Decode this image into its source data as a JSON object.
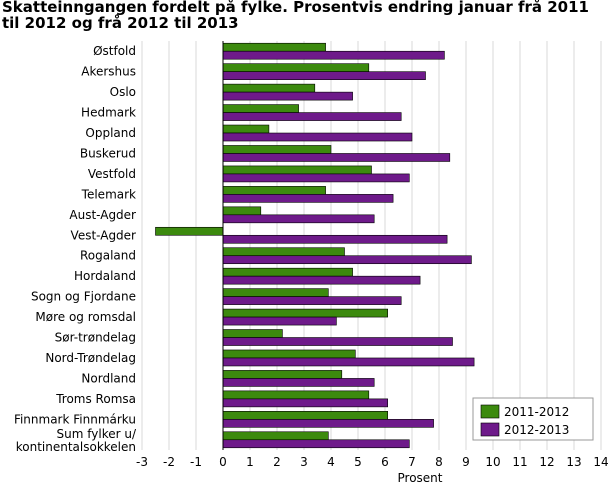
{
  "chart_data": {
    "type": "bar",
    "orientation": "horizontal",
    "title": "Skatteinngangen fordelt på fylke. Prosentvis endring januar frå 2011 til 2012 og frå 2012 til 2013",
    "xlabel": "Prosent",
    "ylabel": "",
    "xlim": [
      -3,
      14
    ],
    "xticks": [
      -3,
      -2,
      -1,
      0,
      1,
      2,
      3,
      4,
      5,
      6,
      7,
      8,
      9,
      10,
      11,
      12,
      13,
      14
    ],
    "grid": true,
    "legend_position": "bottom-right",
    "categories": [
      "Østfold",
      "Akershus",
      "Oslo",
      "Hedmark",
      "Oppland",
      "Buskerud",
      "Vestfold",
      "Telemark",
      "Aust-Agder",
      "Vest-Agder",
      "Rogaland",
      "Hordaland",
      "Sogn og Fjordane",
      "Møre og romsdal",
      "Sør-trøndelag",
      "Nord-Trøndelag",
      "Nordland",
      "Troms Romsa",
      "Finnmark Finnmárku",
      "Sum fylker u/ kontinentalsokkelen"
    ],
    "series": [
      {
        "name": "2011-2012",
        "color": "#3c8a0e",
        "values": [
          3.8,
          5.4,
          3.4,
          2.8,
          1.7,
          4.0,
          5.5,
          3.8,
          1.4,
          -2.5,
          4.5,
          4.8,
          3.9,
          6.1,
          2.2,
          4.9,
          4.4,
          5.4,
          6.1,
          3.9
        ]
      },
      {
        "name": "2012-2013",
        "color": "#6e1a8a",
        "values": [
          8.2,
          7.5,
          4.8,
          6.6,
          7.0,
          8.4,
          6.9,
          6.3,
          5.6,
          8.3,
          9.2,
          7.3,
          6.6,
          4.2,
          8.5,
          9.3,
          5.6,
          6.1,
          7.8,
          6.9
        ]
      }
    ]
  }
}
